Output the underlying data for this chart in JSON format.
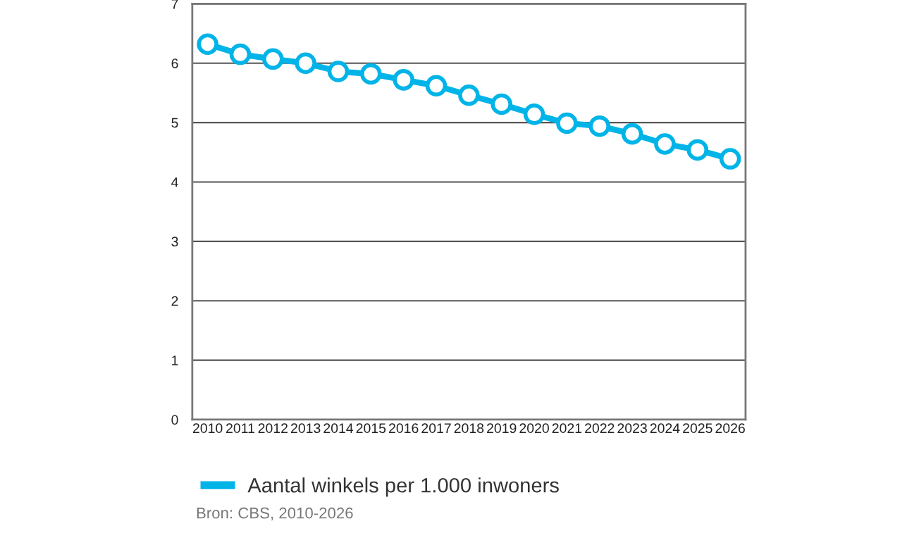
{
  "chart_data": {
    "type": "line",
    "categories": [
      "2010",
      "2011",
      "2012",
      "2013",
      "2014",
      "2015",
      "2016",
      "2017",
      "2018",
      "2019",
      "2020",
      "2021",
      "2022",
      "2023",
      "2024",
      "2025",
      "2026"
    ],
    "series": [
      {
        "name": "Aantal winkels per 1.000 inwoners",
        "color": "#00b4e8",
        "values": [
          6.32,
          6.15,
          6.07,
          6.0,
          5.86,
          5.82,
          5.72,
          5.62,
          5.46,
          5.31,
          5.14,
          4.99,
          4.94,
          4.81,
          4.64,
          4.54,
          4.39
        ]
      }
    ],
    "ylim": [
      0,
      7
    ],
    "yticks": [
      0,
      1,
      2,
      3,
      4,
      5,
      6,
      7
    ],
    "grid": "y",
    "legend": "bottom",
    "marker": "circle",
    "line_style": "solid",
    "annotations": [
      "Bron: CBS, 2010-2026"
    ]
  }
}
